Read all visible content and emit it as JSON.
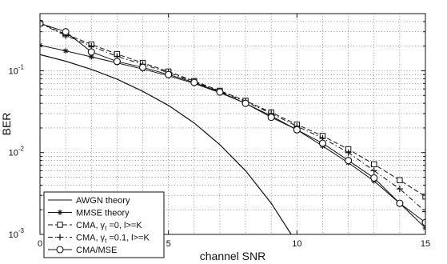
{
  "chart_data": {
    "type": "line",
    "xlabel": "channel SNR",
    "ylabel": "BER",
    "xlim": [
      0,
      15
    ],
    "ylim": [
      0.001,
      0.5
    ],
    "yscale": "log",
    "grid": true,
    "legend_position": "bottom-left",
    "x_ticks": [
      {
        "value": 0,
        "label": "0"
      },
      {
        "value": 5,
        "label": "5"
      },
      {
        "value": 10,
        "label": "10"
      },
      {
        "value": 15,
        "label": "15"
      }
    ],
    "y_ticks": [
      {
        "value": 0.001,
        "base": "10",
        "exp": "-3"
      },
      {
        "value": 0.01,
        "base": "10",
        "exp": "-2"
      },
      {
        "value": 0.1,
        "base": "10",
        "exp": "-1"
      }
    ],
    "series": [
      {
        "name": "AWGN theory",
        "style": "solid",
        "marker": "none",
        "x": [
          0,
          1,
          2,
          3,
          4,
          5,
          6,
          7,
          8,
          9,
          10
        ],
        "y": [
          0.158,
          0.131,
          0.104,
          0.079,
          0.056,
          0.0377,
          0.023,
          0.0125,
          0.006,
          0.0024,
          0.00078
        ]
      },
      {
        "name": "MMSE theory",
        "style": "solid",
        "marker": "star",
        "x": [
          0,
          1,
          2,
          3,
          4,
          5,
          6,
          7,
          8,
          9,
          10,
          11,
          12,
          13,
          14,
          15
        ],
        "y": [
          0.205,
          0.175,
          0.148,
          0.125,
          0.105,
          0.087,
          0.07,
          0.054,
          0.04,
          0.028,
          0.019,
          0.012,
          0.0075,
          0.0045,
          0.0024,
          0.0012
        ]
      },
      {
        "name": "CMA, γₜ=0, l>=K",
        "legend_label": {
          "pre": "CMA, γ",
          "sub": "t",
          "post": " =0, l>=K"
        },
        "style": "dashed",
        "marker": "square",
        "x": [
          0,
          1,
          2,
          3,
          4,
          5,
          6,
          7,
          8,
          9,
          10,
          11,
          12,
          13,
          14,
          15
        ],
        "y": [
          0.38,
          0.28,
          0.21,
          0.16,
          0.125,
          0.098,
          0.075,
          0.057,
          0.043,
          0.031,
          0.022,
          0.016,
          0.011,
          0.0072,
          0.0046,
          0.0029
        ]
      },
      {
        "name": "CMA, γₜ=0.1, l>=K",
        "legend_label": {
          "pre": "CMA, γ",
          "sub": "t",
          "post": " =0.1, l>=K"
        },
        "style": "dashdot",
        "marker": "plus",
        "x": [
          0,
          1,
          2,
          3,
          4,
          5,
          6,
          7,
          8,
          9,
          10,
          11,
          12,
          13,
          14,
          15
        ],
        "y": [
          0.38,
          0.27,
          0.2,
          0.15,
          0.12,
          0.095,
          0.073,
          0.056,
          0.042,
          0.03,
          0.021,
          0.015,
          0.01,
          0.006,
          0.0036,
          0.0019
        ]
      },
      {
        "name": "CMA/MSE",
        "style": "solid",
        "marker": "circle",
        "x": [
          0,
          1,
          2,
          3,
          4,
          5,
          6,
          7,
          8,
          9,
          10,
          11,
          12,
          13,
          14,
          15
        ],
        "y": [
          0.38,
          0.3,
          0.17,
          0.13,
          0.11,
          0.09,
          0.072,
          0.055,
          0.04,
          0.027,
          0.019,
          0.013,
          0.008,
          0.0049,
          0.0024,
          0.0014
        ]
      }
    ]
  }
}
